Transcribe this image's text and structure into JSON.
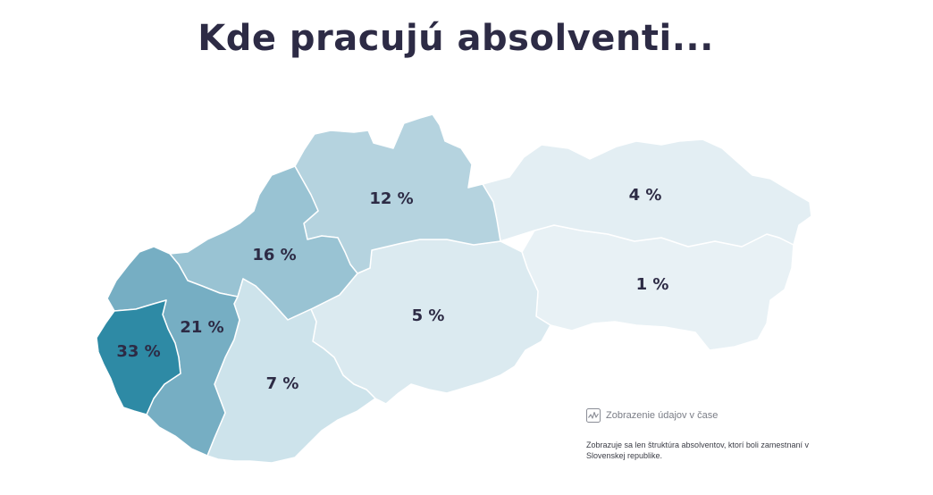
{
  "title": "Kde pracujú absolventi...",
  "regions": [
    {
      "id": "BA",
      "label": "33 %",
      "value": 33,
      "color": "#2e8aa5"
    },
    {
      "id": "TT",
      "label": "21 %",
      "value": 21,
      "color": "#76aec3"
    },
    {
      "id": "TN",
      "label": "16 %",
      "value": 16,
      "color": "#99c3d3"
    },
    {
      "id": "ZA",
      "label": "12 %",
      "value": 12,
      "color": "#b5d3df"
    },
    {
      "id": "NR",
      "label": "7 %",
      "value": 7,
      "color": "#cde3eb"
    },
    {
      "id": "BB",
      "label": "5 %",
      "value": 5,
      "color": "#dbeaf0"
    },
    {
      "id": "PO",
      "label": "4 %",
      "value": 4,
      "color": "#e3eef3"
    },
    {
      "id": "KE",
      "label": "1 %",
      "value": 1,
      "color": "#e8f1f5"
    }
  ],
  "time_link": {
    "label": "Zobrazenie údajov v čase",
    "icon": "chart-line-icon"
  },
  "note": "Zobrazuje sa len štruktúra absolventov, ktorí boli zamestnaní v Slovenskej republike."
}
